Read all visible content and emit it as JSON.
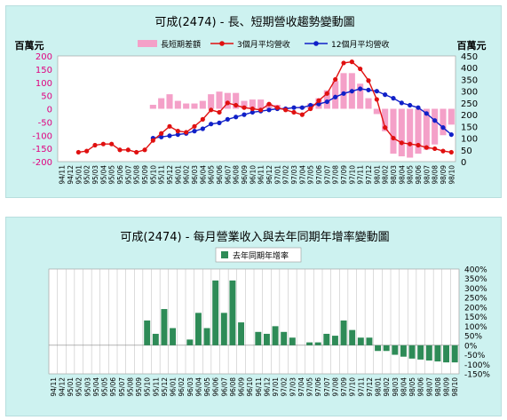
{
  "charts": [
    {
      "title": "可成(2474) - 長、短期營收趨勢變動圖",
      "y_left_unit": "百萬元",
      "y_right_unit": "百萬元",
      "legend": [
        "長短期差額",
        "3個月平均營收",
        "12個月平均營收"
      ]
    },
    {
      "title": "可成(2474) - 每月營業收入與去年同期年增率變動圖",
      "legend": [
        "去年同期年增率"
      ]
    }
  ],
  "colors": {
    "panel_bg": "#cdf2f0",
    "plot_bg": "#ffffff",
    "diff_bar": "#f4a0c8",
    "ma3": "#e01010",
    "ma12": "#1020c8",
    "yoy_bar": "#2e8b57"
  },
  "chart_data": [
    {
      "type": "bar+line",
      "title": "可成(2474) - 長、短期營收趨勢變動圖",
      "categories": [
        "94/11",
        "94/12",
        "95/01",
        "95/02",
        "95/03",
        "95/04",
        "95/05",
        "95/06",
        "95/07",
        "95/08",
        "95/09",
        "95/10",
        "95/11",
        "95/12",
        "96/01",
        "96/02",
        "96/03",
        "96/04",
        "96/05",
        "96/06",
        "96/07",
        "96/08",
        "96/09",
        "96/10",
        "96/11",
        "96/12",
        "97/01",
        "97/02",
        "97/03",
        "97/04",
        "97/05",
        "97/06",
        "97/07",
        "97/08",
        "97/09",
        "97/10",
        "97/11",
        "97/12",
        "98/01",
        "98/02",
        "98/03",
        "98/04",
        "98/05",
        "98/06",
        "98/07",
        "98/08",
        "98/09",
        "98/10"
      ],
      "y_left": {
        "label": "百萬元",
        "ticks": [
          200,
          150,
          100,
          50,
          0,
          -50,
          -100,
          -150,
          -200
        ],
        "range": [
          -200,
          200
        ]
      },
      "y_right": {
        "label": "百萬元",
        "ticks": [
          450,
          400,
          350,
          300,
          250,
          200,
          150,
          100,
          50,
          0
        ],
        "range": [
          0,
          450
        ]
      },
      "series": [
        {
          "name": "長短期差額",
          "kind": "bar",
          "axis": "left",
          "values": [
            null,
            null,
            null,
            null,
            null,
            null,
            null,
            null,
            null,
            null,
            null,
            15,
            40,
            55,
            30,
            20,
            20,
            30,
            55,
            65,
            60,
            60,
            30,
            35,
            35,
            20,
            15,
            5,
            5,
            10,
            20,
            40,
            70,
            105,
            135,
            135,
            95,
            40,
            -20,
            -85,
            -170,
            -180,
            -185,
            -170,
            -155,
            -135,
            -100,
            -60
          ]
        },
        {
          "name": "3個月平均營收",
          "kind": "line",
          "axis": "right",
          "values": [
            null,
            null,
            40,
            45,
            70,
            75,
            75,
            50,
            50,
            40,
            50,
            90,
            120,
            150,
            130,
            125,
            150,
            180,
            220,
            210,
            250,
            240,
            230,
            225,
            220,
            245,
            230,
            220,
            210,
            200,
            225,
            260,
            290,
            350,
            420,
            425,
            395,
            345,
            265,
            145,
            100,
            80,
            75,
            70,
            60,
            55,
            45,
            40
          ]
        },
        {
          "name": "12個月平均營收",
          "kind": "line",
          "axis": "right",
          "values": [
            null,
            null,
            null,
            null,
            null,
            null,
            null,
            null,
            null,
            null,
            null,
            100,
            105,
            110,
            115,
            120,
            130,
            140,
            160,
            165,
            180,
            190,
            200,
            210,
            215,
            220,
            225,
            225,
            230,
            230,
            240,
            245,
            255,
            275,
            290,
            300,
            310,
            305,
            300,
            285,
            270,
            250,
            240,
            230,
            205,
            175,
            145,
            115
          ]
        }
      ]
    },
    {
      "type": "bar",
      "title": "可成(2474) - 每月營業收入與去年同期年增率變動圖",
      "categories": [
        "94/11",
        "94/12",
        "95/01",
        "95/02",
        "95/03",
        "95/04",
        "95/05",
        "95/06",
        "95/07",
        "95/08",
        "95/09",
        "95/10",
        "95/11",
        "95/12",
        "96/01",
        "96/02",
        "96/03",
        "96/04",
        "96/05",
        "96/06",
        "96/07",
        "96/08",
        "96/09",
        "96/10",
        "96/11",
        "96/12",
        "97/01",
        "97/02",
        "97/03",
        "97/04",
        "97/05",
        "97/06",
        "97/07",
        "97/08",
        "97/09",
        "97/10",
        "97/11",
        "97/12",
        "98/01",
        "98/02",
        "98/03",
        "98/04",
        "98/05",
        "98/06",
        "98/07",
        "98/08",
        "98/09",
        "98/10"
      ],
      "y": {
        "ticks": [
          "400%",
          "350%",
          "300%",
          "250%",
          "200%",
          "150%",
          "100%",
          "50%",
          "0%",
          "-50%",
          "-100%",
          "-150%"
        ],
        "range": [
          -150,
          400
        ]
      },
      "series": [
        {
          "name": "去年同期年增率",
          "values": [
            0,
            0,
            0,
            0,
            0,
            0,
            0,
            0,
            0,
            0,
            0,
            130,
            60,
            190,
            90,
            0,
            30,
            170,
            90,
            340,
            170,
            340,
            120,
            0,
            70,
            60,
            100,
            70,
            40,
            0,
            15,
            15,
            60,
            50,
            130,
            80,
            40,
            40,
            -30,
            -30,
            -50,
            -60,
            -70,
            -75,
            -80,
            -85,
            -90,
            -90
          ]
        }
      ]
    }
  ]
}
